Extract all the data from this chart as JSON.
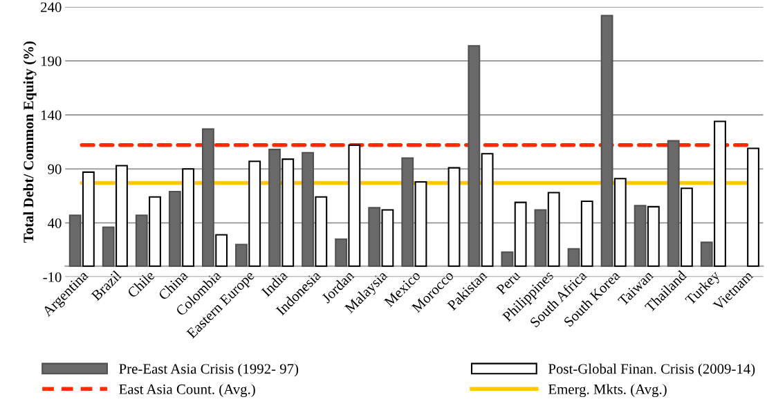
{
  "chart_data": {
    "type": "bar",
    "ylabel": "Total Debt/ Common Equity (%)",
    "categories": [
      "Argentina",
      "Brazil",
      "Chile",
      "China",
      "Colombia",
      "Eastern Europe",
      "India",
      "Indonesia",
      "Jordan",
      "Malaysia",
      "Mexico",
      "Morocco",
      "Pakistan",
      "Peru",
      "Philippines",
      "South Africa",
      "South Korea",
      "Taiwan",
      "Thailand",
      "Turkey",
      "Vietnam"
    ],
    "series": [
      {
        "name": "Pre-East Asia Crisis (1992- 97)",
        "color": "#696969",
        "values": [
          47,
          36,
          47,
          69,
          127,
          20,
          108,
          105,
          25,
          54,
          100,
          null,
          204,
          13,
          52,
          16,
          232,
          56,
          116,
          22,
          null
        ]
      },
      {
        "name": "Post-Global Finan. Crisis (2009-14)",
        "color": "#ffffff",
        "values": [
          87,
          93,
          64,
          90,
          29,
          97,
          99,
          64,
          112,
          52,
          78,
          91,
          104,
          59,
          68,
          60,
          81,
          55,
          72,
          134,
          109
        ]
      }
    ],
    "ref_lines": [
      {
        "axis": "y",
        "value": 112,
        "label": "East Asia Count. (Avg.)",
        "color": "#ff2a00",
        "line_style": "dashed"
      },
      {
        "axis": "y",
        "value": 77,
        "label": "Emerg. Mkts. (Avg.)",
        "color": "#ffc800",
        "line_style": "solid"
      }
    ],
    "ylim": [
      -10,
      240
    ],
    "yticks": [
      -10,
      40,
      90,
      140,
      190,
      240
    ],
    "grid": "y",
    "legend": "bottom"
  }
}
